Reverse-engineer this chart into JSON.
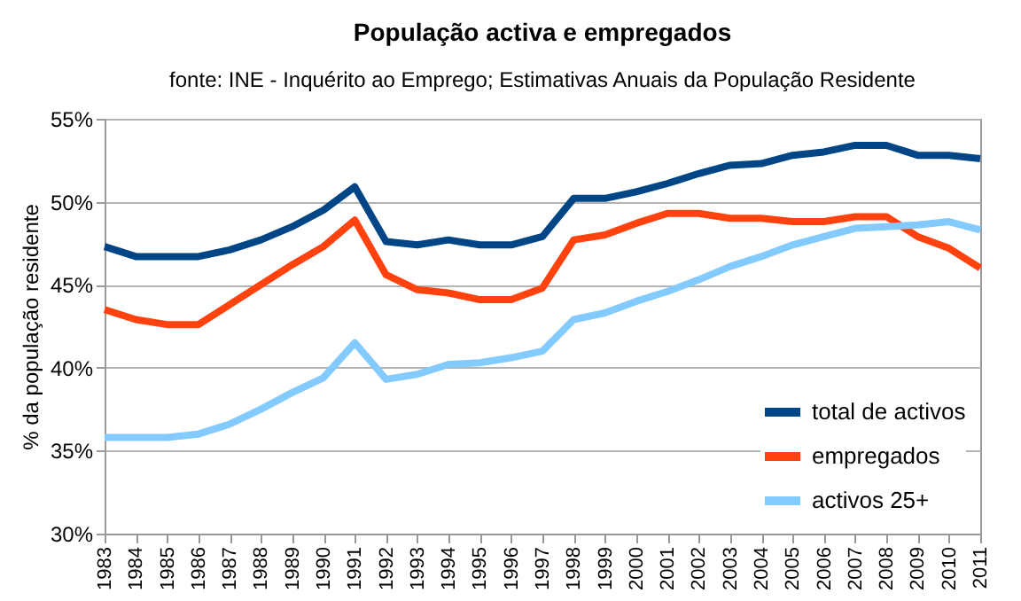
{
  "chart_data": {
    "type": "line",
    "title": "População activa e empregados",
    "subtitle": "fonte: INE - Inquérito ao Emprego; Estimativas Anuais da População Residente",
    "ylabel": "% da população residente",
    "categories": [
      "1983",
      "1984",
      "1985",
      "1986",
      "1987",
      "1988",
      "1989",
      "1990",
      "1991",
      "1992",
      "1993",
      "1994",
      "1995",
      "1996",
      "1997",
      "1998",
      "1999",
      "2000",
      "2001",
      "2002",
      "2003",
      "2004",
      "2005",
      "2006",
      "2007",
      "2008",
      "2009",
      "2010",
      "2011"
    ],
    "series": [
      {
        "name": "total de activos",
        "color": "#004586",
        "values": [
          47.3,
          46.7,
          46.7,
          46.7,
          47.1,
          47.7,
          48.5,
          49.5,
          50.9,
          47.6,
          47.4,
          47.7,
          47.4,
          47.4,
          47.9,
          50.2,
          50.2,
          50.6,
          51.1,
          51.7,
          52.2,
          52.3,
          52.8,
          53.0,
          53.4,
          53.4,
          52.8,
          52.8,
          52.6
        ]
      },
      {
        "name": "empregados",
        "color": "#ff420e",
        "values": [
          43.5,
          42.9,
          42.6,
          42.6,
          43.8,
          45.0,
          46.2,
          47.3,
          48.9,
          45.6,
          44.7,
          44.5,
          44.1,
          44.1,
          44.8,
          47.7,
          48.0,
          48.7,
          49.3,
          49.3,
          49.0,
          49.0,
          48.8,
          48.8,
          49.1,
          49.1,
          47.9,
          47.2,
          46.0
        ]
      },
      {
        "name": "activos 25+",
        "color": "#83caff",
        "values": [
          35.8,
          35.8,
          35.8,
          36.0,
          36.6,
          37.5,
          38.5,
          39.4,
          41.5,
          39.3,
          39.6,
          40.2,
          40.3,
          40.6,
          41.0,
          42.9,
          43.3,
          44.0,
          44.6,
          45.3,
          46.1,
          46.7,
          47.4,
          47.9,
          48.4,
          48.5,
          48.6,
          48.8,
          48.3
        ]
      }
    ],
    "ylim": [
      30,
      55
    ],
    "yticks": [
      {
        "value": 30,
        "label": "30%"
      },
      {
        "value": 35,
        "label": "35%"
      },
      {
        "value": 40,
        "label": "40%"
      },
      {
        "value": 45,
        "label": "45%"
      },
      {
        "value": 50,
        "label": "50%"
      },
      {
        "value": 55,
        "label": "55%"
      }
    ],
    "grid": "y",
    "legend": "bottom right",
    "marker": "none",
    "line_style": "solid"
  }
}
